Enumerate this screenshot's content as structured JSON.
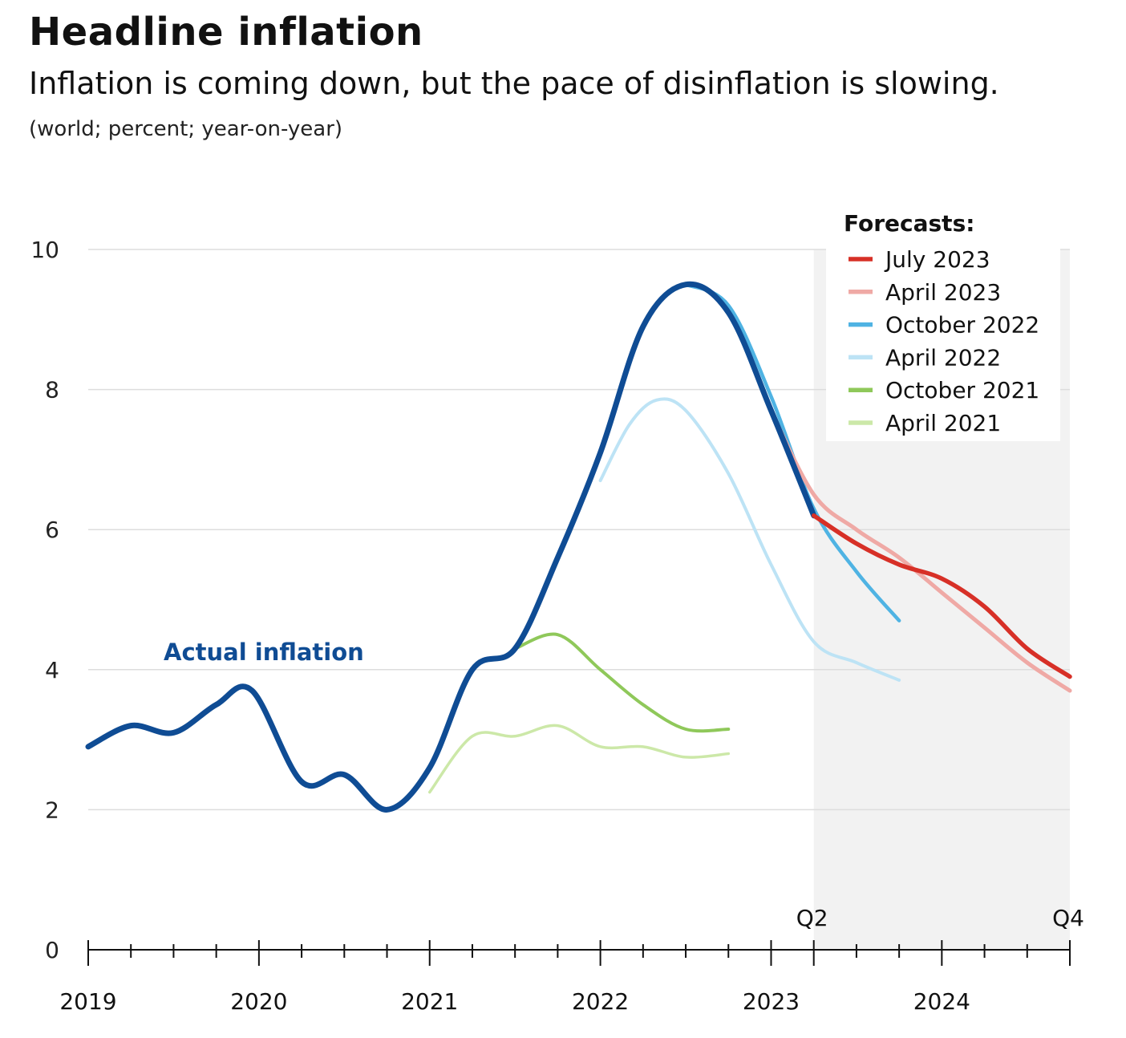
{
  "title": "Headline inflation",
  "subtitle": "Inflation is coming down, but the pace of disinflation is slowing.",
  "units": "(world; percent; year-on-year)",
  "colors": {
    "actual": "#0f4c94",
    "july2023": "#d73027",
    "april2023": "#efa9a5",
    "oct2022": "#4fb3e3",
    "apr2022": "#bde3f5",
    "oct2021": "#8fc85a",
    "apr2021": "#cce8a8",
    "forecast_shade": "#f2f2f2",
    "grid": "#dddddd"
  },
  "chart_data": {
    "type": "line",
    "xlabel": "",
    "ylabel": "",
    "ylim": [
      0,
      10
    ],
    "xlim": [
      2019.0,
      2024.75
    ],
    "y_ticks": [
      "0",
      "2",
      "4",
      "6",
      "8",
      "10"
    ],
    "x_ticks": [
      "2019",
      "2020",
      "2021",
      "2022",
      "2023",
      "2024"
    ],
    "quarter_labels": [
      "Q2",
      "Q4"
    ],
    "forecast_shade_range": [
      2023.25,
      2024.75
    ],
    "legend_title": "Forecasts:",
    "legend_position": "top-right",
    "annotation": "Actual inflation",
    "grid": true,
    "series": [
      {
        "key": "actual",
        "x": [
          2019.0,
          2019.25,
          2019.5,
          2019.75,
          2019.96,
          2020.25,
          2020.5,
          2020.75,
          2021.0,
          2021.25,
          2021.5,
          2021.75,
          2022.0,
          2022.25,
          2022.5,
          2022.75,
          2023.0,
          2023.25
        ],
        "y": [
          2.9,
          3.2,
          3.1,
          3.5,
          3.7,
          2.4,
          2.5,
          2.0,
          2.6,
          4.0,
          4.3,
          5.6,
          7.1,
          8.9,
          9.5,
          9.1,
          7.7,
          6.2
        ]
      },
      {
        "key": "july2023",
        "name": "July 2023",
        "x": [
          2023.25,
          2023.5,
          2023.75,
          2024.0,
          2024.25,
          2024.5,
          2024.75
        ],
        "y": [
          6.2,
          5.8,
          5.5,
          5.3,
          4.9,
          4.3,
          3.9
        ]
      },
      {
        "key": "april2023",
        "name": "April 2023",
        "x": [
          2023.0,
          2023.25,
          2023.5,
          2023.75,
          2024.0,
          2024.25,
          2024.5,
          2024.75
        ],
        "y": [
          7.7,
          6.5,
          6.0,
          5.6,
          5.1,
          4.6,
          4.1,
          3.7
        ]
      },
      {
        "key": "oct2022",
        "name": "October 2022",
        "x": [
          2022.5,
          2022.75,
          2023.0,
          2023.25,
          2023.5,
          2023.75
        ],
        "y": [
          9.5,
          9.2,
          7.9,
          6.3,
          5.4,
          4.7
        ]
      },
      {
        "key": "apr2022",
        "name": "April 2022",
        "x": [
          2022.0,
          2022.17,
          2022.33,
          2022.5,
          2022.75,
          2023.0,
          2023.25,
          2023.5,
          2023.75
        ],
        "y": [
          6.7,
          7.5,
          7.85,
          7.7,
          6.8,
          5.5,
          4.4,
          4.1,
          3.85
        ]
      },
      {
        "key": "oct2021",
        "name": "October 2021",
        "x": [
          2021.5,
          2021.75,
          2022.0,
          2022.25,
          2022.5,
          2022.75
        ],
        "y": [
          4.3,
          4.5,
          4.0,
          3.5,
          3.15,
          3.15
        ]
      },
      {
        "key": "apr2021",
        "name": "April 2021",
        "x": [
          2021.0,
          2021.25,
          2021.5,
          2021.75,
          2022.0,
          2022.25,
          2022.5,
          2022.75
        ],
        "y": [
          2.25,
          3.05,
          3.05,
          3.2,
          2.9,
          2.9,
          2.75,
          2.8
        ]
      }
    ]
  }
}
